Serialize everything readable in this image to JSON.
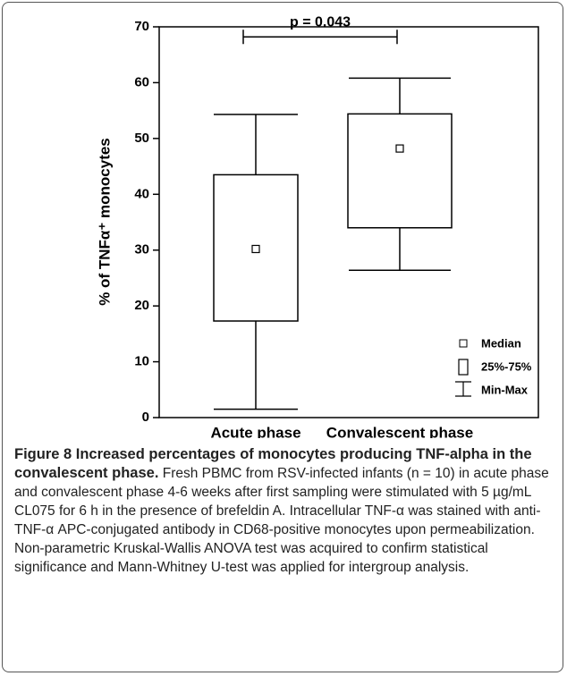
{
  "chart_data": {
    "type": "box",
    "ylabel": "% of TNFα⁺ monocytes",
    "categories": [
      "Acute phase",
      "Convalescent phase"
    ],
    "boxes": [
      {
        "min": 1.5,
        "q1": 17.3,
        "median": 30.2,
        "q3": 43.5,
        "max": 54.3
      },
      {
        "min": 26.4,
        "q1": 34.0,
        "median": 48.2,
        "q3": 54.4,
        "max": 60.8
      }
    ],
    "ylim": [
      0,
      70
    ],
    "yticks": [
      0,
      10,
      20,
      30,
      40,
      50,
      60,
      70
    ],
    "significance": {
      "text": "p = 0.043",
      "y": 68.2
    },
    "legend": {
      "median": "Median",
      "box": "25%-75%",
      "whisker": "Min-Max"
    },
    "color": "#000000"
  },
  "caption": {
    "title": "Figure 8 Increased percentages of monocytes producing TNF-alpha in the convalescent phase.",
    "text": "Fresh PBMC from RSV-infected infants (n = 10) in acute phase and convalescent phase 4-6 weeks after first sampling were stimulated with 5 µg/mL CL075 for 6 h in the presence of brefeldin A. Intracellular TNF-α was stained with anti-TNF-α APC-conjugated antibody in CD68-positive monocytes upon permeabilization. Non-parametric Kruskal-Wallis ANOVA test was acquired to confirm statistical significance and Mann-Whitney U-test was applied for intergroup analysis."
  }
}
